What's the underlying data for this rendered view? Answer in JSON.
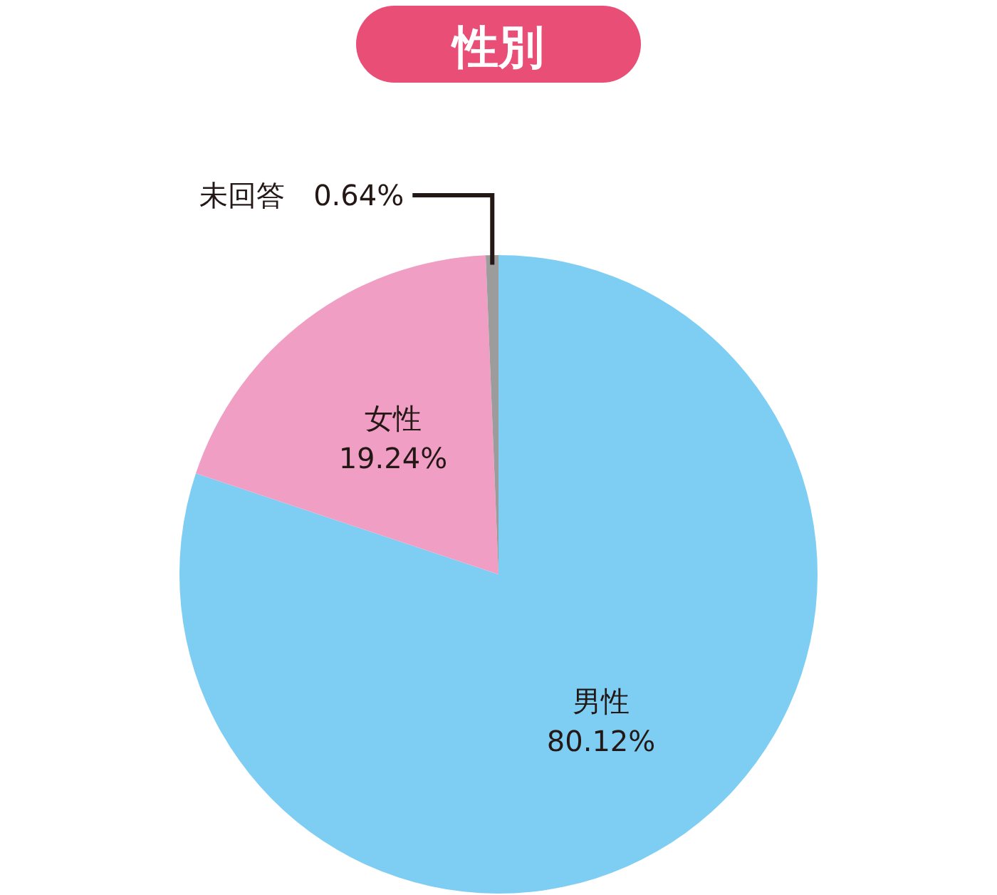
{
  "chart_data": {
    "type": "pie",
    "title": "性別",
    "categories": [
      "男性",
      "女性",
      "未回答"
    ],
    "values": [
      80.12,
      19.24,
      0.64
    ],
    "colors": [
      "#7ecef4",
      "#f09ec4",
      "#9c9c9c"
    ],
    "value_labels": [
      "80.12%",
      "19.24%",
      "0.64%"
    ]
  }
}
